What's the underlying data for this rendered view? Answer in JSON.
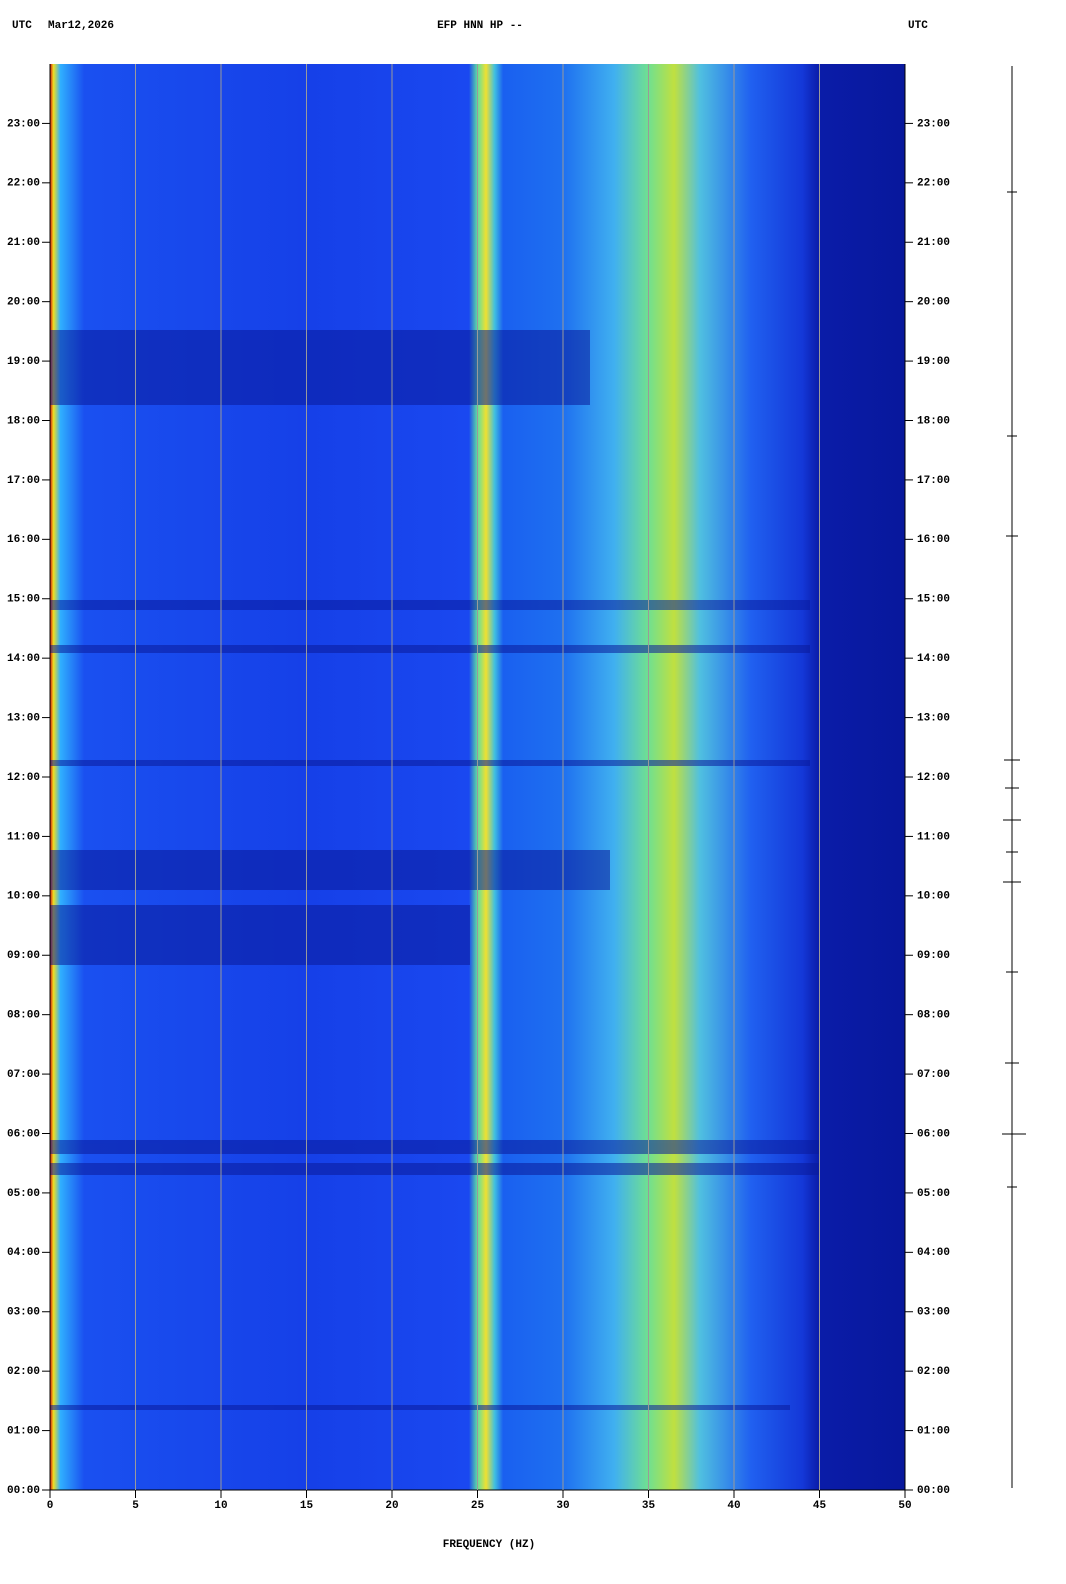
{
  "chart_data": {
    "type": "spectrogram",
    "left_label": "UTC",
    "date": "Mar12,2026",
    "title": "EFP HNN HP --",
    "right_label": "UTC",
    "xlabel": "FREQUENCY (HZ)",
    "xlim": [
      0,
      50
    ],
    "xticks": [
      0,
      5,
      10,
      15,
      20,
      25,
      30,
      35,
      40,
      45,
      50
    ],
    "ylim": [
      0,
      24
    ],
    "yticks": [
      {
        "value": 0,
        "label": "00:00"
      },
      {
        "value": 1,
        "label": "01:00"
      },
      {
        "value": 2,
        "label": "02:00"
      },
      {
        "value": 3,
        "label": "03:00"
      },
      {
        "value": 4,
        "label": "04:00"
      },
      {
        "value": 5,
        "label": "05:00"
      },
      {
        "value": 6,
        "label": "06:00"
      },
      {
        "value": 7,
        "label": "07:00"
      },
      {
        "value": 8,
        "label": "08:00"
      },
      {
        "value": 9,
        "label": "09:00"
      },
      {
        "value": 10,
        "label": "10:00"
      },
      {
        "value": 11,
        "label": "11:00"
      },
      {
        "value": 12,
        "label": "12:00"
      },
      {
        "value": 13,
        "label": "13:00"
      },
      {
        "value": 14,
        "label": "14:00"
      },
      {
        "value": 15,
        "label": "15:00"
      },
      {
        "value": 16,
        "label": "16:00"
      },
      {
        "value": 17,
        "label": "17:00"
      },
      {
        "value": 18,
        "label": "18:00"
      },
      {
        "value": 19,
        "label": "19:00"
      },
      {
        "value": 20,
        "label": "20:00"
      },
      {
        "value": 21,
        "label": "21:00"
      },
      {
        "value": 22,
        "label": "22:00"
      },
      {
        "value": 23,
        "label": "23:00"
      }
    ],
    "grid": true
  }
}
